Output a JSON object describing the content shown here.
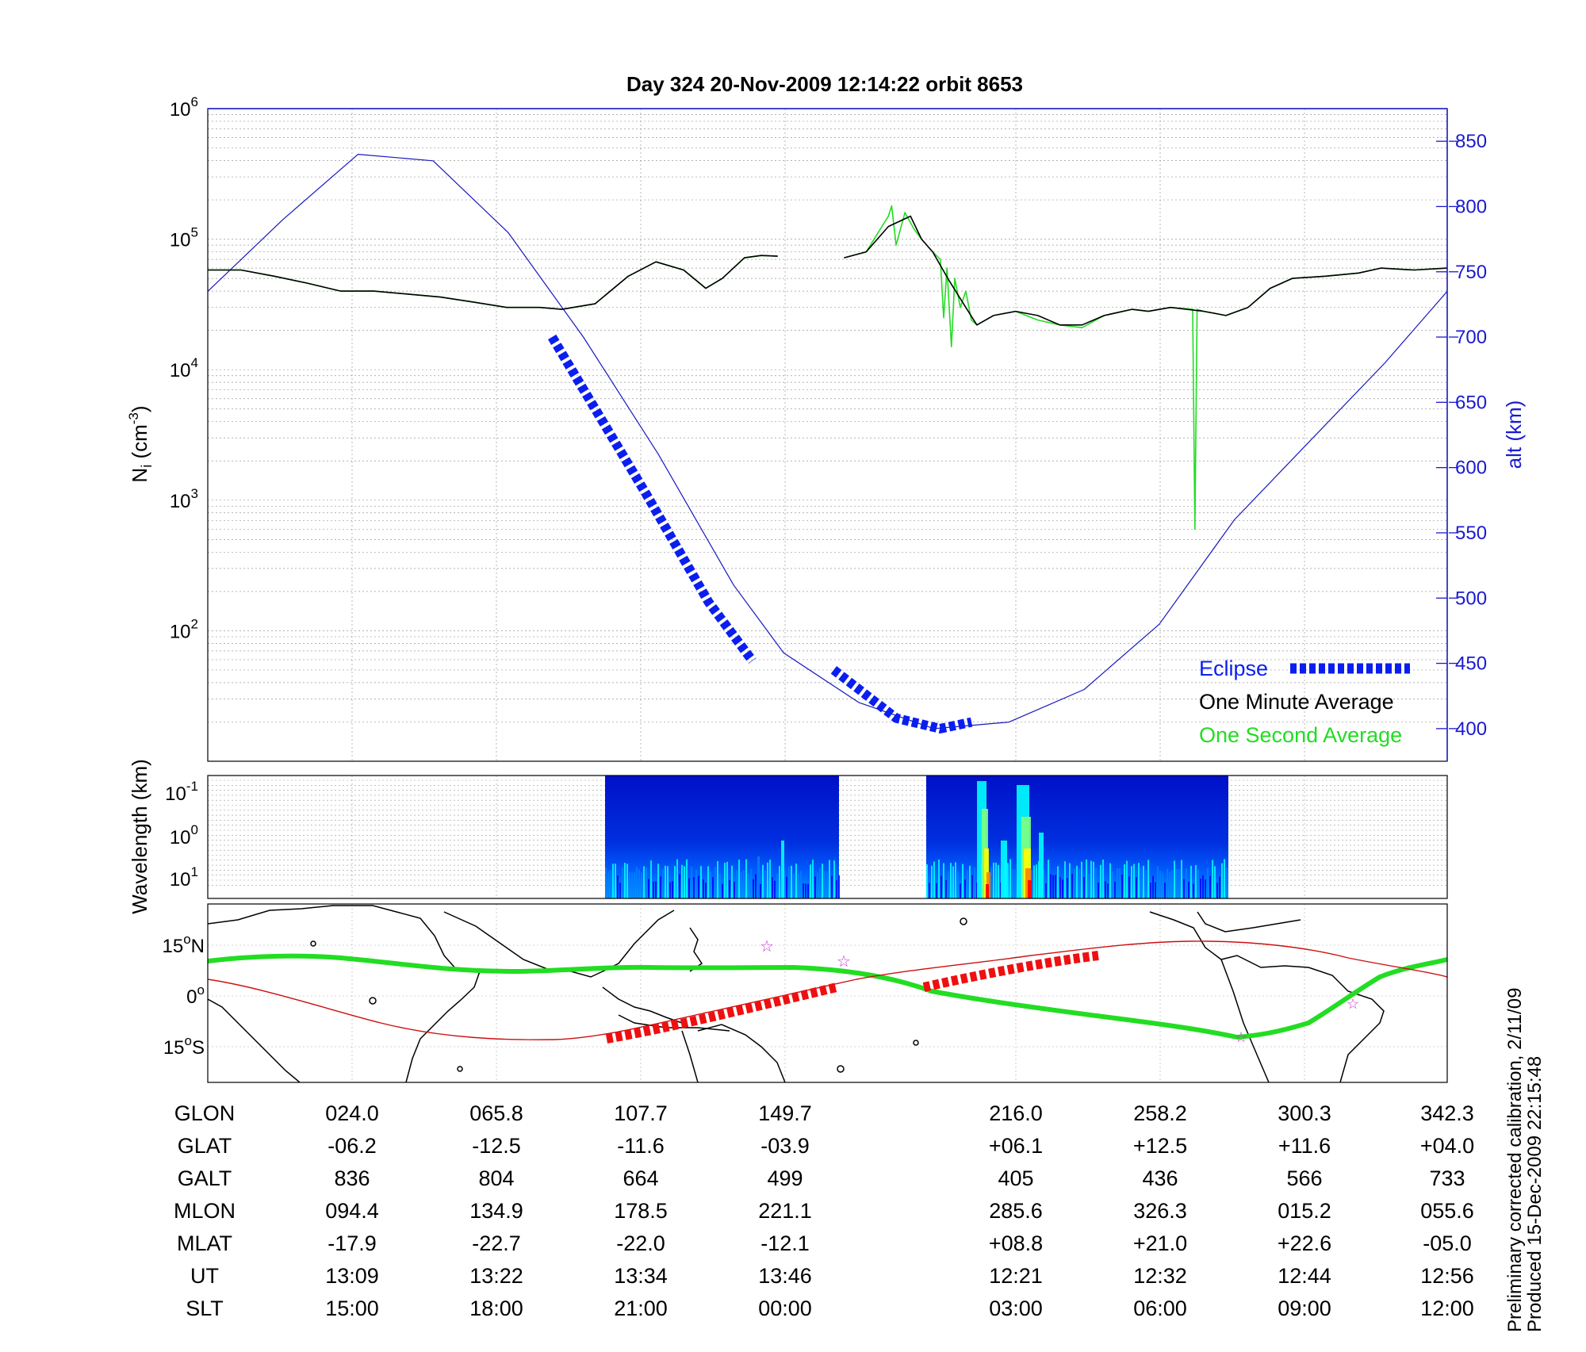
{
  "chart_data": [
    {
      "type": "line",
      "title": "Day 324  20-Nov-2009 12:14:22   orbit 8653",
      "ylabel_left": "N",
      "ylabel_left_sub": "i",
      "ylabel_left_unit": "(cm",
      "ylabel_left_unit_sup": "-3",
      "ylabel_left_unit_end": ")",
      "ylabel_right": "alt (km)",
      "y_scale": "log",
      "ylim": [
        10,
        1000000
      ],
      "y_ticks": [
        {
          "base": "10",
          "exp": "2",
          "v": 100
        },
        {
          "base": "10",
          "exp": "3",
          "v": 1000
        },
        {
          "base": "10",
          "exp": "4",
          "v": 10000
        },
        {
          "base": "10",
          "exp": "5",
          "v": 100000
        },
        {
          "base": "10",
          "exp": "6",
          "v": 1000000
        }
      ],
      "y2lim": [
        375,
        875
      ],
      "y2_ticks": [
        "400",
        "450",
        "500",
        "550",
        "600",
        "650",
        "700",
        "750",
        "800",
        "850"
      ],
      "x_index_range": [
        0,
        8.6
      ],
      "grid": true,
      "legend_placement": "bottom-right",
      "colors": {
        "altitude": "#1818c0",
        "eclipse": "#0a1ef0",
        "minute": "#000000",
        "second": "#22dd22"
      },
      "legend": [
        "Eclipse",
        "One Minute Average",
        "One Second Average"
      ],
      "series": [
        {
          "name": "Eclipse",
          "style": "dashed-thick",
          "segments": [
            [
              [
                2.75,
                700
              ],
              [
                3.0,
                660
              ],
              [
                3.5,
                580
              ],
              [
                4.0,
                497
              ],
              [
                4.35,
                452
              ]
            ],
            [
              [
                5.0,
                445
              ],
              [
                5.5,
                408
              ],
              [
                5.85,
                400
              ],
              [
                6.1,
                405
              ]
            ]
          ]
        },
        {
          "name": "One Minute Average",
          "segments": [
            [
              [
                0,
                58000
              ],
              [
                0.3,
                58000
              ],
              [
                0.6,
                52000
              ],
              [
                0.9,
                46000
              ],
              [
                1.2,
                40000
              ],
              [
                1.5,
                40000
              ],
              [
                1.8,
                38000
              ],
              [
                2.1,
                36000
              ],
              [
                2.4,
                33000
              ],
              [
                2.7,
                30000
              ],
              [
                3.0,
                30000
              ],
              [
                3.2,
                29000
              ],
              [
                3.5,
                32000
              ],
              [
                3.8,
                52000
              ],
              [
                4.05,
                67000
              ],
              [
                4.3,
                58000
              ],
              [
                4.5,
                42000
              ],
              [
                4.65,
                50000
              ],
              [
                4.85,
                72000
              ],
              [
                5.0,
                75000
              ],
              [
                5.15,
                74000
              ]
            ],
            [
              [
                5.75,
                72000
              ],
              [
                5.95,
                80000
              ],
              [
                6.15,
                125000
              ],
              [
                6.35,
                150000
              ],
              [
                6.45,
                100000
              ],
              [
                6.55,
                80000
              ],
              [
                6.7,
                48000
              ],
              [
                6.85,
                30000
              ],
              [
                6.95,
                22000
              ],
              [
                7.1,
                26000
              ],
              [
                7.3,
                28000
              ],
              [
                7.5,
                26000
              ],
              [
                7.7,
                22000
              ],
              [
                7.9,
                22000
              ],
              [
                8.1,
                26000
              ],
              [
                8.35,
                29000
              ],
              [
                8.5,
                28000
              ],
              [
                8.7,
                30000
              ],
              [
                9.0,
                28000
              ],
              [
                9.2,
                26000
              ],
              [
                9.4,
                30000
              ],
              [
                9.6,
                42000
              ],
              [
                9.8,
                50000
              ],
              [
                10.1,
                52000
              ],
              [
                10.4,
                55000
              ],
              [
                10.6,
                60000
              ],
              [
                10.9,
                58000
              ],
              [
                11.2,
                60000
              ]
            ]
          ]
        },
        {
          "name": "One Second Average",
          "segments": [
            [
              [
                0,
                58000
              ],
              [
                0.3,
                58000
              ],
              [
                0.6,
                52000
              ],
              [
                0.9,
                46000
              ],
              [
                1.2,
                40000
              ],
              [
                1.5,
                40000
              ],
              [
                1.8,
                38000
              ],
              [
                2.1,
                36000
              ],
              [
                2.4,
                33000
              ],
              [
                2.7,
                30000
              ],
              [
                3.0,
                30000
              ],
              [
                3.2,
                29000
              ],
              [
                3.5,
                32000
              ],
              [
                3.8,
                52000
              ],
              [
                4.05,
                67000
              ],
              [
                4.3,
                58000
              ],
              [
                4.5,
                42000
              ],
              [
                4.65,
                50000
              ],
              [
                4.85,
                72000
              ],
              [
                5.0,
                75000
              ],
              [
                5.15,
                74000
              ]
            ],
            [
              [
                5.75,
                72000
              ],
              [
                5.95,
                80000
              ],
              [
                6.15,
                150000
              ],
              [
                6.18,
                180000
              ],
              [
                6.22,
                90000
              ],
              [
                6.3,
                160000
              ],
              [
                6.38,
                120000
              ],
              [
                6.45,
                100000
              ],
              [
                6.55,
                80000
              ],
              [
                6.62,
                70000
              ],
              [
                6.65,
                25000
              ],
              [
                6.68,
                60000
              ],
              [
                6.72,
                15000
              ],
              [
                6.75,
                50000
              ],
              [
                6.8,
                30000
              ],
              [
                6.85,
                40000
              ],
              [
                6.9,
                24000
              ],
              [
                6.95,
                22000
              ],
              [
                7.1,
                26000
              ],
              [
                7.3,
                28000
              ],
              [
                7.5,
                24000
              ],
              [
                7.7,
                22000
              ],
              [
                7.9,
                21000
              ],
              [
                8.1,
                26000
              ],
              [
                8.35,
                29000
              ],
              [
                8.5,
                28000
              ],
              [
                8.7,
                30000
              ],
              [
                8.9,
                29000
              ],
              [
                8.92,
                600
              ],
              [
                8.94,
                29000
              ],
              [
                9.0,
                28000
              ],
              [
                9.2,
                26000
              ],
              [
                9.4,
                30000
              ],
              [
                9.6,
                42000
              ],
              [
                9.8,
                50000
              ],
              [
                10.1,
                52000
              ],
              [
                10.4,
                55000
              ],
              [
                10.6,
                60000
              ],
              [
                10.9,
                58000
              ],
              [
                11.2,
                60000
              ]
            ]
          ]
        },
        {
          "name": "altitude",
          "segments": [
            [
              [
                0,
                735
              ],
              [
                0.6,
                790
              ],
              [
                1.2,
                840
              ],
              [
                1.8,
                835
              ],
              [
                2.4,
                780
              ],
              [
                3.0,
                700
              ],
              [
                3.6,
                610
              ],
              [
                4.2,
                510
              ],
              [
                4.6,
                458
              ],
              [
                5.2,
                420
              ],
              [
                5.8,
                400
              ],
              [
                6.4,
                405
              ],
              [
                7.0,
                430
              ],
              [
                7.6,
                480
              ],
              [
                8.2,
                560
              ],
              [
                8.8,
                620
              ],
              [
                9.4,
                680
              ],
              [
                9.9,
                735
              ]
            ]
          ]
        }
      ]
    },
    {
      "type": "heatmap",
      "ylabel": "Wavelength (km)",
      "y_ticks": [
        {
          "base": "10",
          "exp": "-1"
        },
        {
          "base": "10",
          "exp": "0"
        },
        {
          "base": "10",
          "exp": "1"
        }
      ],
      "colorscale": [
        "#00008f",
        "#0000ff",
        "#0080ff",
        "#00ffff",
        "#80ff80",
        "#ffff00",
        "#ff8000",
        "#ff0000"
      ]
    },
    {
      "type": "map",
      "lat_ticks": [
        {
          "num": "15",
          "unit": "o",
          "hem": "N"
        },
        {
          "num": "0",
          "unit": "o",
          "hem": ""
        },
        {
          "num": "15",
          "unit": "o",
          "hem": "S"
        }
      ]
    }
  ],
  "table": {
    "rows": [
      {
        "label": "GLON",
        "values": [
          "024.0",
          "065.8",
          "107.7",
          "149.7",
          "216.0",
          "258.2",
          "300.3",
          "342.3"
        ]
      },
      {
        "label": "GLAT",
        "values": [
          "-06.2",
          "-12.5",
          "-11.6",
          "-03.9",
          "+06.1",
          "+12.5",
          "+11.6",
          "+04.0"
        ]
      },
      {
        "label": "GALT",
        "values": [
          "836",
          "804",
          "664",
          "499",
          "405",
          "436",
          "566",
          "733"
        ]
      },
      {
        "label": "MLON",
        "values": [
          "094.4",
          "134.9",
          "178.5",
          "221.1",
          "285.6",
          "326.3",
          "015.2",
          "055.6"
        ]
      },
      {
        "label": "MLAT",
        "values": [
          "-17.9",
          "-22.7",
          "-22.0",
          "-12.1",
          "+08.8",
          "+21.0",
          "+22.6",
          "-05.0"
        ]
      },
      {
        "label": "UT",
        "values": [
          "13:09",
          "13:22",
          "13:34",
          "13:46",
          "12:21",
          "12:32",
          "12:44",
          "12:56"
        ]
      },
      {
        "label": "SLT",
        "values": [
          "15:00",
          "18:00",
          "21:00",
          "00:00",
          "03:00",
          "06:00",
          "09:00",
          "12:00"
        ]
      }
    ]
  },
  "footnote": {
    "line1": "Preliminary corrected calibration, 2/11/09",
    "line2": "Produced 15-Dec-2009 22:15:48"
  }
}
